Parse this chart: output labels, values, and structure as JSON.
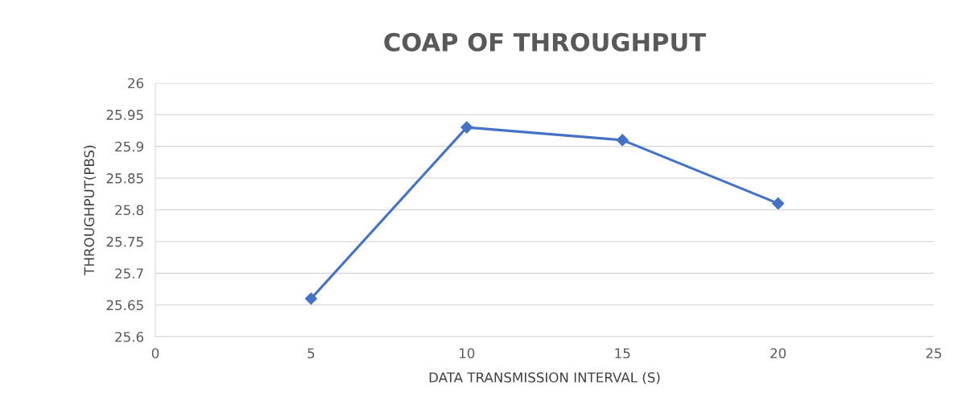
{
  "chart_data": {
    "type": "line",
    "title": "COAP OF THROUGHPUT",
    "xlabel": "DATA TRANSMISSION INTERVAL (S)",
    "ylabel": "THROUGHPUT(PBS)",
    "x": [
      5,
      10,
      15,
      20
    ],
    "series": [
      {
        "color": "#4472c4",
        "values": [
          25.66,
          25.93,
          25.91,
          25.81
        ]
      }
    ],
    "xlim": [
      0,
      25
    ],
    "xticks": [
      0,
      5,
      10,
      15,
      20,
      25
    ],
    "ylim": [
      25.6,
      26
    ],
    "yticks": [
      25.6,
      25.65,
      25.7,
      25.75,
      25.8,
      25.85,
      25.9,
      25.95,
      26
    ],
    "grid": "y",
    "marker": "diamond",
    "line_style": "solid"
  }
}
